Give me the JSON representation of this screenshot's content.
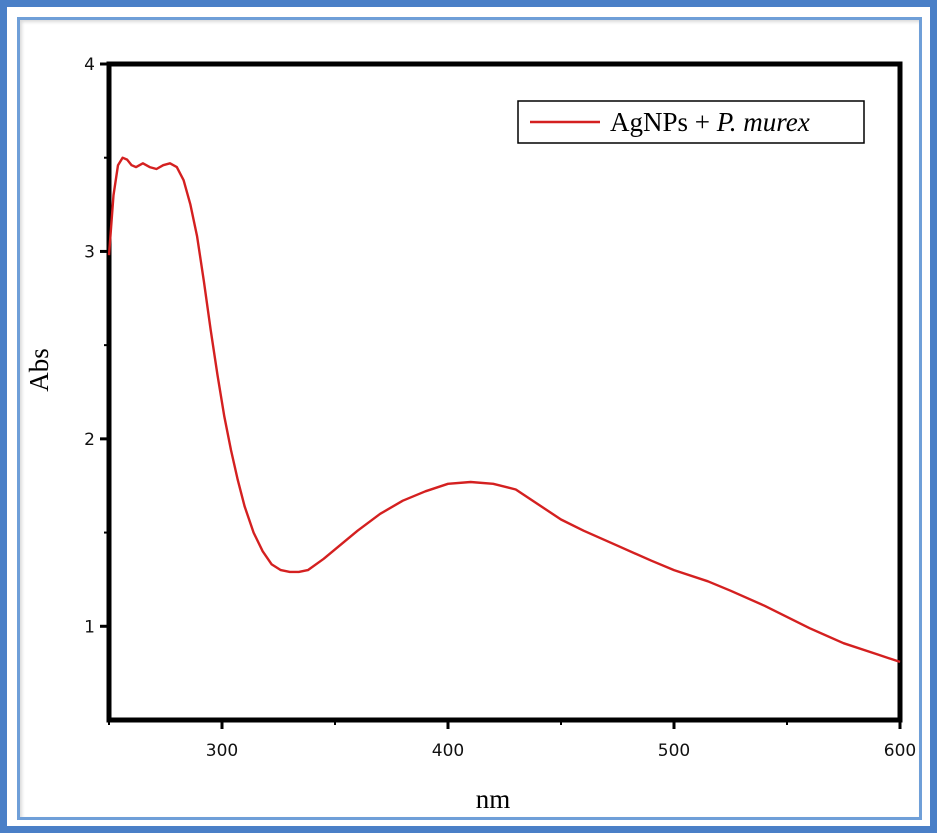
{
  "chart_data": {
    "type": "line",
    "xlabel": "nm",
    "ylabel": "Abs",
    "xlim": [
      250,
      600
    ],
    "ylim": [
      0.5,
      4
    ],
    "x_ticks": [
      "300",
      "400",
      "500",
      "600"
    ],
    "y_ticks": [
      "1",
      "2",
      "3",
      "4"
    ],
    "x_tick_values": [
      300,
      400,
      500,
      600
    ],
    "y_tick_values": [
      1,
      2,
      3,
      4
    ],
    "legend_position": "top-right",
    "series": [
      {
        "name_prefix": "AgNPs + ",
        "name_italic": "P. murex",
        "color": "#d42020",
        "points": [
          [
            250,
            2.98
          ],
          [
            252,
            3.3
          ],
          [
            254,
            3.46
          ],
          [
            256,
            3.5
          ],
          [
            258,
            3.49
          ],
          [
            260,
            3.46
          ],
          [
            262,
            3.45
          ],
          [
            265,
            3.47
          ],
          [
            268,
            3.45
          ],
          [
            271,
            3.44
          ],
          [
            274,
            3.46
          ],
          [
            277,
            3.47
          ],
          [
            280,
            3.45
          ],
          [
            283,
            3.38
          ],
          [
            286,
            3.25
          ],
          [
            289,
            3.08
          ],
          [
            292,
            2.84
          ],
          [
            295,
            2.58
          ],
          [
            298,
            2.34
          ],
          [
            301,
            2.12
          ],
          [
            304,
            1.94
          ],
          [
            307,
            1.78
          ],
          [
            310,
            1.64
          ],
          [
            314,
            1.5
          ],
          [
            318,
            1.4
          ],
          [
            322,
            1.33
          ],
          [
            326,
            1.3
          ],
          [
            330,
            1.29
          ],
          [
            334,
            1.29
          ],
          [
            338,
            1.3
          ],
          [
            345,
            1.36
          ],
          [
            352,
            1.43
          ],
          [
            360,
            1.51
          ],
          [
            370,
            1.6
          ],
          [
            380,
            1.67
          ],
          [
            390,
            1.72
          ],
          [
            400,
            1.76
          ],
          [
            410,
            1.77
          ],
          [
            420,
            1.76
          ],
          [
            430,
            1.73
          ],
          [
            440,
            1.65
          ],
          [
            450,
            1.57
          ],
          [
            460,
            1.51
          ],
          [
            475,
            1.43
          ],
          [
            490,
            1.35
          ],
          [
            500,
            1.3
          ],
          [
            515,
            1.24
          ],
          [
            525,
            1.19
          ],
          [
            540,
            1.11
          ],
          [
            550,
            1.05
          ],
          [
            560,
            0.99
          ],
          [
            575,
            0.91
          ],
          [
            590,
            0.85
          ],
          [
            600,
            0.81
          ]
        ]
      }
    ]
  }
}
